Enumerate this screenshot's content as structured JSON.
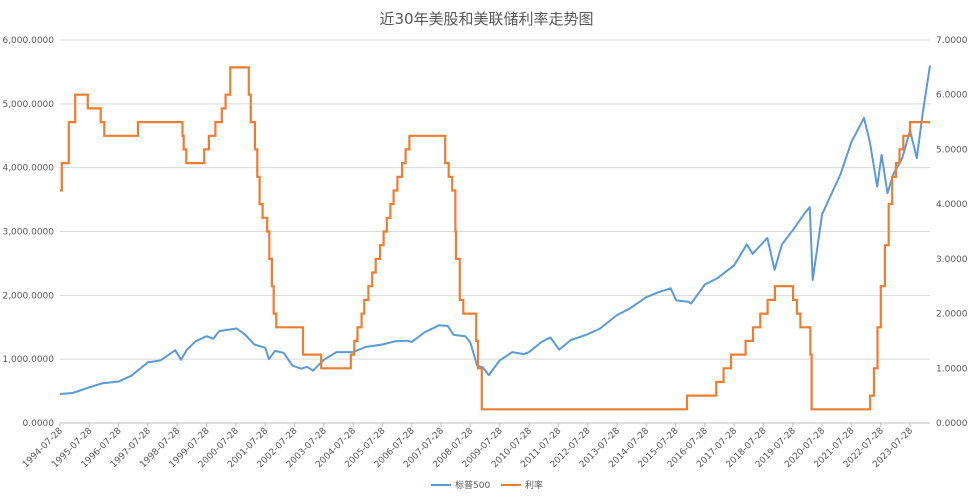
{
  "chart_data": {
    "type": "line",
    "title": "近30年美股和美联储利率走势图",
    "x_tick_labels": [
      "1994-07-28",
      "1995-07-28",
      "1996-07-28",
      "1997-07-28",
      "1998-07-28",
      "1999-07-28",
      "2000-07-28",
      "2001-07-28",
      "2002-07-28",
      "2003-07-28",
      "2004-07-28",
      "2005-07-28",
      "2006-07-28",
      "2007-07-28",
      "2008-07-28",
      "2009-07-28",
      "2010-07-28",
      "2011-07-28",
      "2012-07-28",
      "2013-07-28",
      "2014-07-28",
      "2015-07-28",
      "2016-07-28",
      "2017-07-28",
      "2018-07-28",
      "2019-07-28",
      "2020-07-28",
      "2021-07-28",
      "2022-07-28",
      "2023-07-28"
    ],
    "x_range": [
      1994.57,
      2024.25
    ],
    "y_left": {
      "min": 0,
      "max": 6000,
      "ticks": [
        0,
        1000,
        2000,
        3000,
        4000,
        5000,
        6000
      ],
      "tick_labels": [
        "0.0000",
        "1,000.0000",
        "2,000.0000",
        "3,000.0000",
        "4,000.0000",
        "5,000.0000",
        "6,000.0000"
      ]
    },
    "y_right": {
      "min": 0,
      "max": 7,
      "ticks": [
        0,
        1,
        2,
        3,
        4,
        5,
        6,
        7
      ],
      "tick_labels": [
        "0.0000",
        "1.0000",
        "2.0000",
        "3.0000",
        "4.0000",
        "5.0000",
        "6.0000",
        "7.0000"
      ]
    },
    "grid": true,
    "legend_position": "bottom",
    "series": [
      {
        "name": "标普500",
        "axis": "left",
        "color": "#5B9BD5",
        "points": [
          [
            1994.57,
            455
          ],
          [
            1995.0,
            470
          ],
          [
            1995.57,
            560
          ],
          [
            1996.0,
            620
          ],
          [
            1996.57,
            650
          ],
          [
            1997.0,
            740
          ],
          [
            1997.3,
            850
          ],
          [
            1997.57,
            950
          ],
          [
            1998.0,
            980
          ],
          [
            1998.5,
            1140
          ],
          [
            1998.7,
            990
          ],
          [
            1998.9,
            1150
          ],
          [
            1999.2,
            1280
          ],
          [
            1999.57,
            1360
          ],
          [
            1999.8,
            1320
          ],
          [
            2000.0,
            1440
          ],
          [
            2000.3,
            1460
          ],
          [
            2000.6,
            1480
          ],
          [
            2000.9,
            1380
          ],
          [
            2001.2,
            1230
          ],
          [
            2001.57,
            1180
          ],
          [
            2001.7,
            1000
          ],
          [
            2001.9,
            1130
          ],
          [
            2002.2,
            1100
          ],
          [
            2002.5,
            900
          ],
          [
            2002.8,
            850
          ],
          [
            2003.0,
            880
          ],
          [
            2003.2,
            820
          ],
          [
            2003.57,
            990
          ],
          [
            2004.0,
            1110
          ],
          [
            2004.57,
            1110
          ],
          [
            2005.0,
            1190
          ],
          [
            2005.57,
            1230
          ],
          [
            2006.0,
            1280
          ],
          [
            2006.4,
            1290
          ],
          [
            2006.57,
            1270
          ],
          [
            2007.0,
            1420
          ],
          [
            2007.5,
            1530
          ],
          [
            2007.8,
            1520
          ],
          [
            2008.0,
            1380
          ],
          [
            2008.4,
            1360
          ],
          [
            2008.57,
            1260
          ],
          [
            2008.8,
            900
          ],
          [
            2009.0,
            870
          ],
          [
            2009.2,
            750
          ],
          [
            2009.57,
            980
          ],
          [
            2010.0,
            1110
          ],
          [
            2010.4,
            1080
          ],
          [
            2010.57,
            1110
          ],
          [
            2011.0,
            1270
          ],
          [
            2011.3,
            1340
          ],
          [
            2011.6,
            1150
          ],
          [
            2012.0,
            1300
          ],
          [
            2012.57,
            1390
          ],
          [
            2013.0,
            1480
          ],
          [
            2013.57,
            1690
          ],
          [
            2014.0,
            1790
          ],
          [
            2014.57,
            1970
          ],
          [
            2015.0,
            2050
          ],
          [
            2015.4,
            2110
          ],
          [
            2015.6,
            1920
          ],
          [
            2016.0,
            1900
          ],
          [
            2016.1,
            1870
          ],
          [
            2016.57,
            2170
          ],
          [
            2017.0,
            2270
          ],
          [
            2017.57,
            2470
          ],
          [
            2018.0,
            2800
          ],
          [
            2018.2,
            2650
          ],
          [
            2018.7,
            2900
          ],
          [
            2018.95,
            2400
          ],
          [
            2019.2,
            2800
          ],
          [
            2019.57,
            3020
          ],
          [
            2020.0,
            3300
          ],
          [
            2020.15,
            3380
          ],
          [
            2020.25,
            2240
          ],
          [
            2020.57,
            3270
          ],
          [
            2020.9,
            3600
          ],
          [
            2021.2,
            3900
          ],
          [
            2021.57,
            4400
          ],
          [
            2022.0,
            4780
          ],
          [
            2022.2,
            4400
          ],
          [
            2022.45,
            3700
          ],
          [
            2022.6,
            4200
          ],
          [
            2022.8,
            3600
          ],
          [
            2023.0,
            3900
          ],
          [
            2023.3,
            4150
          ],
          [
            2023.57,
            4580
          ],
          [
            2023.8,
            4150
          ],
          [
            2024.0,
            4850
          ],
          [
            2024.25,
            5600
          ]
        ]
      },
      {
        "name": "利率",
        "axis": "right",
        "color": "#ED7D31",
        "steps": [
          [
            1994.57,
            4.25
          ],
          [
            1994.63,
            4.75
          ],
          [
            1994.87,
            5.5
          ],
          [
            1995.09,
            6.0
          ],
          [
            1995.52,
            5.75
          ],
          [
            1995.96,
            5.5
          ],
          [
            1996.08,
            5.25
          ],
          [
            1997.23,
            5.5
          ],
          [
            1998.75,
            5.25
          ],
          [
            1998.79,
            5.0
          ],
          [
            1998.88,
            4.75
          ],
          [
            1999.49,
            5.0
          ],
          [
            1999.65,
            5.25
          ],
          [
            1999.87,
            5.5
          ],
          [
            2000.09,
            5.75
          ],
          [
            2000.22,
            6.0
          ],
          [
            2000.38,
            6.5
          ],
          [
            2001.01,
            6.0
          ],
          [
            2001.08,
            5.5
          ],
          [
            2001.22,
            5.0
          ],
          [
            2001.3,
            4.5
          ],
          [
            2001.38,
            4.0
          ],
          [
            2001.48,
            3.75
          ],
          [
            2001.64,
            3.5
          ],
          [
            2001.71,
            3.0
          ],
          [
            2001.8,
            2.5
          ],
          [
            2001.86,
            2.0
          ],
          [
            2001.95,
            1.75
          ],
          [
            2002.86,
            1.25
          ],
          [
            2003.48,
            1.0
          ],
          [
            2004.49,
            1.25
          ],
          [
            2004.61,
            1.5
          ],
          [
            2004.72,
            1.75
          ],
          [
            2004.86,
            2.0
          ],
          [
            2004.95,
            2.25
          ],
          [
            2005.09,
            2.5
          ],
          [
            2005.22,
            2.75
          ],
          [
            2005.34,
            3.0
          ],
          [
            2005.49,
            3.25
          ],
          [
            2005.61,
            3.5
          ],
          [
            2005.72,
            3.75
          ],
          [
            2005.84,
            4.0
          ],
          [
            2005.95,
            4.25
          ],
          [
            2006.08,
            4.5
          ],
          [
            2006.24,
            4.75
          ],
          [
            2006.36,
            5.0
          ],
          [
            2006.49,
            5.25
          ],
          [
            2007.71,
            4.75
          ],
          [
            2007.83,
            4.5
          ],
          [
            2007.95,
            4.25
          ],
          [
            2008.06,
            3.5
          ],
          [
            2008.08,
            3.0
          ],
          [
            2008.21,
            2.25
          ],
          [
            2008.33,
            2.0
          ],
          [
            2008.77,
            1.5
          ],
          [
            2008.83,
            1.0
          ],
          [
            2008.96,
            0.25
          ],
          [
            2015.96,
            0.5
          ],
          [
            2016.96,
            0.75
          ],
          [
            2017.21,
            1.0
          ],
          [
            2017.46,
            1.25
          ],
          [
            2017.96,
            1.5
          ],
          [
            2018.21,
            1.75
          ],
          [
            2018.46,
            2.0
          ],
          [
            2018.71,
            2.25
          ],
          [
            2018.96,
            2.5
          ],
          [
            2019.58,
            2.25
          ],
          [
            2019.71,
            2.0
          ],
          [
            2019.83,
            1.75
          ],
          [
            2020.17,
            1.25
          ],
          [
            2020.21,
            0.25
          ],
          [
            2022.21,
            0.5
          ],
          [
            2022.34,
            1.0
          ],
          [
            2022.46,
            1.75
          ],
          [
            2022.57,
            2.5
          ],
          [
            2022.71,
            3.25
          ],
          [
            2022.84,
            4.0
          ],
          [
            2022.96,
            4.5
          ],
          [
            2023.09,
            4.75
          ],
          [
            2023.21,
            5.0
          ],
          [
            2023.34,
            5.25
          ],
          [
            2023.57,
            5.5
          ],
          [
            2024.25,
            5.5
          ]
        ]
      }
    ],
    "legend": [
      {
        "label": "标普500",
        "color": "#5B9BD5"
      },
      {
        "label": "利率",
        "color": "#ED7D31"
      }
    ]
  }
}
